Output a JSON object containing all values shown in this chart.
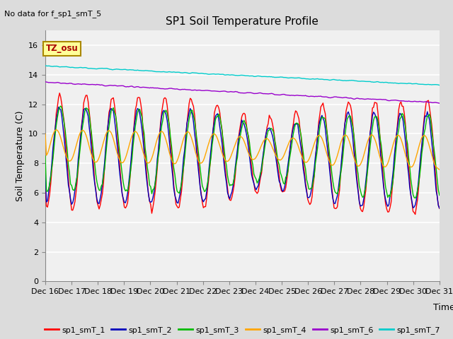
{
  "title": "SP1 Soil Temperature Profile",
  "subtitle": "No data for f_sp1_smT_5",
  "xlabel": "Time",
  "ylabel": "Soil Temperature (C)",
  "tz_label": "TZ_osu",
  "ylim": [
    0,
    17
  ],
  "yticks": [
    0,
    2,
    4,
    6,
    8,
    10,
    12,
    14,
    16
  ],
  "xtick_labels": [
    "Dec 16",
    "Dec 17",
    "Dec 18",
    "Dec 19",
    "Dec 20",
    "Dec 21",
    "Dec 22",
    "Dec 23",
    "Dec 24",
    "Dec 25",
    "Dec 26",
    "Dec 27",
    "Dec 28",
    "Dec 29",
    "Dec 30",
    "Dec 31"
  ],
  "series_colors": {
    "sp1_smT_1": "#FF0000",
    "sp1_smT_2": "#0000BB",
    "sp1_smT_3": "#00BB00",
    "sp1_smT_4": "#FFA500",
    "sp1_smT_6": "#9900CC",
    "sp1_smT_7": "#00CCCC"
  },
  "bg_color": "#DCDCDC",
  "plot_bg_color": "#F0F0F0",
  "grid_color": "#FFFFFF",
  "line_width": 1.0
}
